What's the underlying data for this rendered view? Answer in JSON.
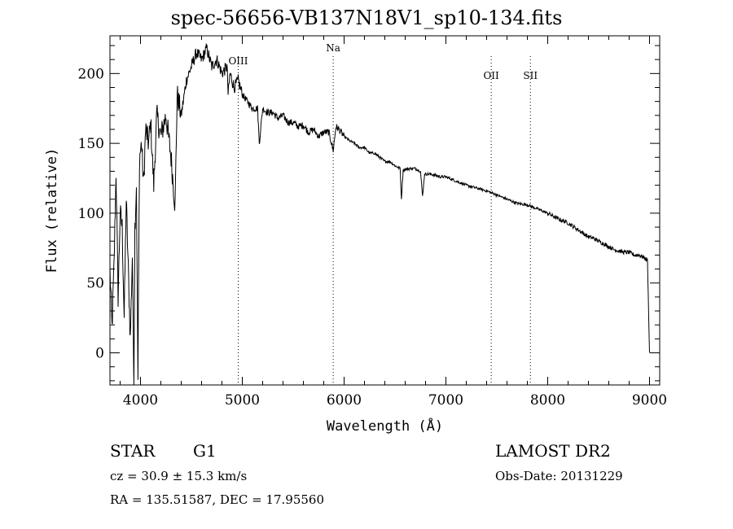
{
  "chart_data": {
    "type": "line",
    "title": "spec-56656-VB137N18V1_sp10-134.fits",
    "xlabel": "Wavelength (Å)",
    "ylabel": "Flux (relative)",
    "xlim": [
      3700,
      9100
    ],
    "ylim": [
      -23,
      227
    ],
    "xticks": [
      4000,
      5000,
      6000,
      7000,
      8000,
      9000
    ],
    "yticks": [
      0,
      50,
      100,
      150,
      200
    ],
    "grid": false,
    "lines": [
      {
        "label": "OIII",
        "x": 4960
      },
      {
        "label": "Na",
        "x": 5893
      },
      {
        "label": "OII",
        "x": 7445
      },
      {
        "label": "SII",
        "x": 7830
      }
    ],
    "series": [
      {
        "name": "flux",
        "anchors": [
          [
            3700,
            60
          ],
          [
            3720,
            18
          ],
          [
            3740,
            62
          ],
          [
            3760,
            130
          ],
          [
            3780,
            40
          ],
          [
            3800,
            100
          ],
          [
            3820,
            90
          ],
          [
            3840,
            25
          ],
          [
            3860,
            110
          ],
          [
            3880,
            60
          ],
          [
            3900,
            10
          ],
          [
            3920,
            70
          ],
          [
            3935,
            -23
          ],
          [
            3945,
            90
          ],
          [
            3960,
            120
          ],
          [
            3975,
            -20
          ],
          [
            3990,
            140
          ],
          [
            4010,
            150
          ],
          [
            4030,
            120
          ],
          [
            4050,
            160
          ],
          [
            4080,
            150
          ],
          [
            4100,
            165
          ],
          [
            4130,
            120
          ],
          [
            4160,
            170
          ],
          [
            4200,
            155
          ],
          [
            4250,
            170
          ],
          [
            4300,
            140
          ],
          [
            4340,
            105
          ],
          [
            4360,
            185
          ],
          [
            4400,
            170
          ],
          [
            4450,
            195
          ],
          [
            4500,
            205
          ],
          [
            4550,
            215
          ],
          [
            4600,
            210
          ],
          [
            4650,
            218
          ],
          [
            4700,
            205
          ],
          [
            4750,
            210
          ],
          [
            4800,
            200
          ],
          [
            4850,
            205
          ],
          [
            4861,
            185
          ],
          [
            4880,
            200
          ],
          [
            4920,
            190
          ],
          [
            4960,
            195
          ],
          [
            5000,
            185
          ],
          [
            5050,
            180
          ],
          [
            5100,
            175
          ],
          [
            5150,
            175
          ],
          [
            5167,
            150
          ],
          [
            5200,
            175
          ],
          [
            5250,
            172
          ],
          [
            5300,
            172
          ],
          [
            5350,
            168
          ],
          [
            5400,
            170
          ],
          [
            5450,
            165
          ],
          [
            5500,
            165
          ],
          [
            5550,
            162
          ],
          [
            5600,
            163
          ],
          [
            5650,
            158
          ],
          [
            5700,
            160
          ],
          [
            5750,
            155
          ],
          [
            5800,
            158
          ],
          [
            5850,
            158
          ],
          [
            5893,
            145
          ],
          [
            5920,
            162
          ],
          [
            5950,
            160
          ],
          [
            6000,
            155
          ],
          [
            6050,
            152
          ],
          [
            6100,
            150
          ],
          [
            6150,
            147
          ],
          [
            6200,
            147
          ],
          [
            6250,
            143
          ],
          [
            6300,
            143
          ],
          [
            6350,
            140
          ],
          [
            6400,
            137
          ],
          [
            6450,
            137
          ],
          [
            6500,
            134
          ],
          [
            6550,
            132
          ],
          [
            6563,
            110
          ],
          [
            6580,
            131
          ],
          [
            6650,
            132
          ],
          [
            6700,
            132
          ],
          [
            6750,
            130
          ],
          [
            6770,
            112
          ],
          [
            6790,
            128
          ],
          [
            6850,
            128
          ],
          [
            6900,
            127
          ],
          [
            6950,
            126
          ],
          [
            7000,
            126
          ],
          [
            7100,
            123
          ],
          [
            7200,
            120
          ],
          [
            7300,
            118
          ],
          [
            7400,
            116
          ],
          [
            7500,
            113
          ],
          [
            7600,
            110
          ],
          [
            7700,
            107
          ],
          [
            7800,
            106
          ],
          [
            7900,
            103
          ],
          [
            8000,
            100
          ],
          [
            8100,
            96
          ],
          [
            8200,
            93
          ],
          [
            8300,
            88
          ],
          [
            8400,
            83
          ],
          [
            8450,
            82
          ],
          [
            8500,
            80
          ],
          [
            8550,
            78
          ],
          [
            8600,
            76
          ],
          [
            8650,
            74
          ],
          [
            8700,
            73
          ],
          [
            8750,
            72
          ],
          [
            8800,
            72
          ],
          [
            8850,
            70
          ],
          [
            8900,
            70
          ],
          [
            8950,
            68
          ],
          [
            8980,
            66
          ],
          [
            9000,
            0
          ]
        ]
      }
    ]
  },
  "footer": {
    "object_type": "STAR",
    "subclass": "G1",
    "survey": "LAMOST DR2",
    "cz_text": "cz = 30.9 ± 15.3 km/s",
    "obs_date_text": "Obs-Date: 20131229",
    "coords_text": "RA = 135.51587, DEC =  17.95560"
  }
}
